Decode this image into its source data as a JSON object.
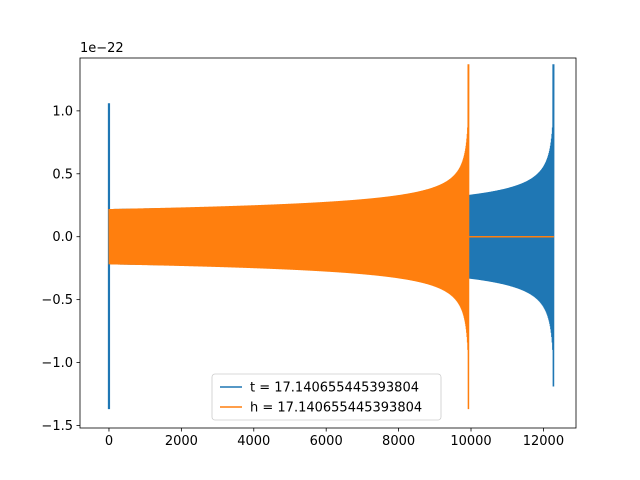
{
  "chart_data": {
    "type": "line",
    "title": "",
    "xlabel": "",
    "ylabel": "",
    "y_offset_text": "1e−22",
    "xlim": [
      -800,
      12900
    ],
    "ylim": [
      -1.52,
      1.42
    ],
    "x_ticks": [
      0,
      2000,
      4000,
      6000,
      8000,
      10000,
      12000
    ],
    "x_tick_labels": [
      "0",
      "2000",
      "4000",
      "6000",
      "8000",
      "10000",
      "12000"
    ],
    "y_ticks": [
      -1.5,
      -1.0,
      -0.5,
      0.0,
      0.5,
      1.0
    ],
    "y_tick_labels": [
      "−1.5",
      "−1.0",
      "−0.5",
      "0.0",
      "0.5",
      "1.0"
    ],
    "grid": false,
    "legend_position": "lower-center",
    "series": [
      {
        "name": "t = 17.140655445393804",
        "color": "#1f77b4",
        "spike_at": 0,
        "spike_range": [
          -1.37,
          1.06
        ],
        "chirp_x": [
          0,
          12290
        ],
        "envelope_start": 0.22,
        "envelope_end": 1.37,
        "envelope_end_min": -1.19
      },
      {
        "name": "h = 17.140655445393804",
        "color": "#ff7f0e",
        "chirp_x": [
          0,
          9940
        ],
        "envelope_start": 0.22,
        "envelope_end": 1.37,
        "envelope_end_min": -1.37,
        "flat_x": [
          9940,
          12290
        ],
        "flat_value": 0.0
      }
    ]
  }
}
